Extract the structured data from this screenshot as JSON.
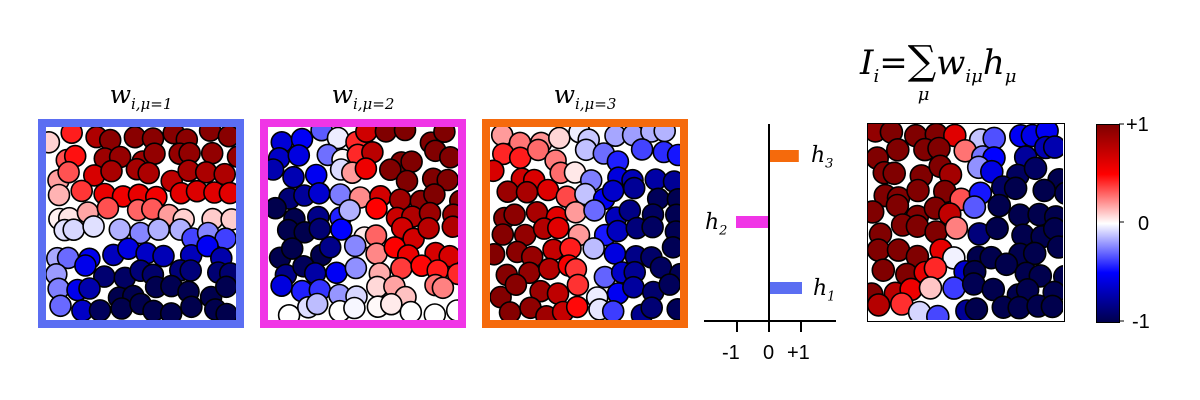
{
  "panels": [
    {
      "title_var": "w",
      "title_sub": "i,μ=1",
      "border_color": "#5b6ef2"
    },
    {
      "title_var": "w",
      "title_sub": "i,μ=2",
      "border_color": "#f035e6"
    },
    {
      "title_var": "w",
      "title_sub": "i,μ=3",
      "border_color": "#f56a0c"
    }
  ],
  "formula": {
    "lhs": "I",
    "lhs_sub": "i",
    "eq": "=",
    "sum": "∑",
    "sum_sub": "μ",
    "w": "w",
    "w_sub": "iμ",
    "h": "h",
    "h_sub": "μ"
  },
  "chart_data": {
    "type": "bar",
    "orientation": "horizontal",
    "categories": [
      "h1",
      "h2",
      "h3"
    ],
    "labels": [
      {
        "var": "h",
        "sub": "1"
      },
      {
        "var": "h",
        "sub": "2"
      },
      {
        "var": "h",
        "sub": "3"
      }
    ],
    "values": [
      1.0,
      -1.0,
      0.9
    ],
    "colors": [
      "#5b6ef2",
      "#f035e6",
      "#f56a0c"
    ],
    "xlim": [
      -2,
      2
    ],
    "xticks": [
      "-1",
      "0",
      "+1"
    ]
  },
  "colorbar": {
    "max_label": "+1",
    "mid_label": "0",
    "min_label": "-1"
  }
}
